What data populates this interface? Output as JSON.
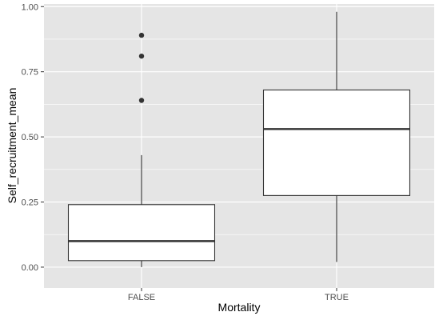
{
  "chart_data": {
    "type": "box",
    "xlabel": "Mortality",
    "ylabel": "Self_recruitment_mean",
    "ylim": [
      -0.08,
      1.01
    ],
    "yticks": [
      0.0,
      0.25,
      0.5,
      0.75,
      1.0
    ],
    "ytick_labels": [
      "0.00",
      "0.25",
      "0.50",
      "0.75",
      "1.00"
    ],
    "categories": [
      "FALSE",
      "TRUE"
    ],
    "grid": true,
    "colors": {
      "panel_background": "#e5e5e5",
      "grid_major": "#ffffff",
      "box_fill": "#ffffff",
      "box_stroke": "#333333",
      "axis_text": "#4d4d4d",
      "axis_title": "#000000"
    },
    "boxes": [
      {
        "category": "FALSE",
        "whisker_low": 0.0,
        "q1": 0.025,
        "median": 0.1,
        "q3": 0.24,
        "whisker_high": 0.43,
        "outliers": [
          0.64,
          0.81,
          0.89
        ]
      },
      {
        "category": "TRUE",
        "whisker_low": 0.02,
        "q1": 0.275,
        "median": 0.53,
        "q3": 0.68,
        "whisker_high": 0.98,
        "outliers": []
      }
    ]
  }
}
